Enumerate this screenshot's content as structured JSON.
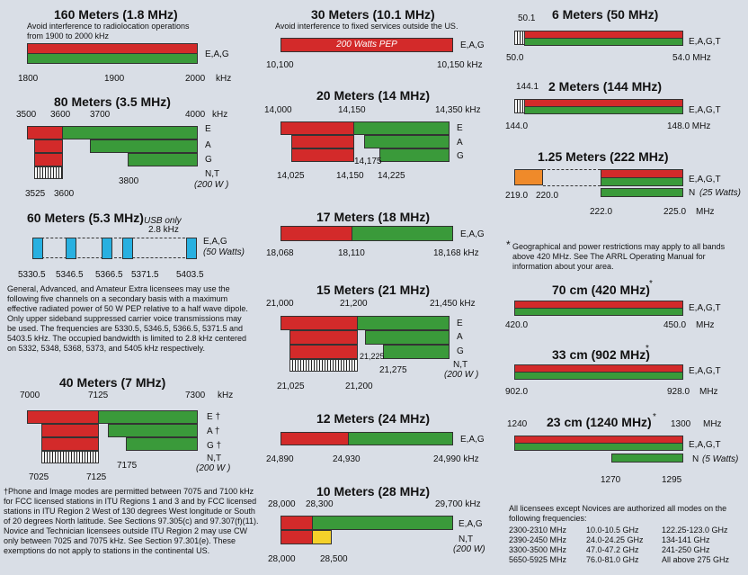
{
  "col1": {
    "b160": {
      "title": "160 Meters (1.8 MHz)",
      "sub": "Avoid interference to radiolocation operations from 1900 to 2000 kHz",
      "mode": "E,A,G",
      "t1": "1800",
      "t2": "1900",
      "t3": "2000",
      "unit": "kHz"
    },
    "b80": {
      "title": "80 Meters (3.5 MHz)",
      "top1": "3500",
      "top2": "3600",
      "top3": "3700",
      "top4": "4000",
      "unit": "kHz",
      "e": "E",
      "a": "A",
      "g": "G",
      "nt": "N,T",
      "pw": "(200 W )",
      "b1": "3800",
      "c1": "3525",
      "c2": "3600"
    },
    "b60": {
      "title": "60 Meters (5.3 MHz)",
      "usb": "USB only",
      "bw": "2.8 kHz",
      "mode": "E,A,G",
      "pw": "(50 Watts)",
      "f1": "5330.5",
      "f2": "5346.5",
      "f3": "5366.5",
      "f4": "5371.5",
      "f5": "5403.5",
      "text": "General, Advanced, and Amateur Extra licensees may use the following five channels on a secondary basis with a maximum effective radiated power of 50 W PEP relative to a half wave dipole. Only upper sideband suppressed carrier voice transmissions may be used. The frequencies are 5330.5, 5346.5, 5366.5, 5371.5 and 5403.5 kHz. The occupied bandwidth is limited to 2.8 kHz centered on 5332, 5348, 5368, 5373, and 5405 kHz respectively."
    },
    "b40": {
      "title": "40 Meters (7 MHz)",
      "top1": "7000",
      "top2": "7125",
      "top3": "7300",
      "unit": "kHz",
      "e": "E †",
      "a": "A †",
      "g": "G †",
      "nt": "N,T",
      "pw": "(200 W )",
      "b1": "7175",
      "c1": "7025",
      "c2": "7125"
    },
    "foot": "†Phone and Image modes are permitted between 7075 and 7100 kHz for FCC licensed stations in ITU Regions 1 and 3 and by FCC licensed stations in ITU Region 2 West of 130 degrees West longitude or South of 20 degrees North latitude. See Sections 97.305(c) and 97.307(f)(11). Novice and Technician licensees outside ITU Region 2 may use CW only between 7025 and 7075 kHz. See Section 97.301(e). These exemptions do not apply to stations in the continental US."
  },
  "col2": {
    "b30": {
      "title": "30 Meters (10.1 MHz)",
      "sub": "Avoid interference to fixed services outside the US.",
      "pep": "200 Watts PEP",
      "mode": "E,A,G",
      "t1": "10,100",
      "t2": "10,150 kHz"
    },
    "b20": {
      "title": "20 Meters (14 MHz)",
      "top1": "14,000",
      "top2": "14,150",
      "top3": "14,350 kHz",
      "e": "E",
      "a": "A",
      "g": "G",
      "m1": "14,175",
      "b1": "14,025",
      "b2": "14,150",
      "b3": "14,225"
    },
    "b17": {
      "title": "17 Meters (18 MHz)",
      "mode": "E,A,G",
      "t1": "18,068",
      "t2": "18,110",
      "t3": "18,168 kHz"
    },
    "b15": {
      "title": "15 Meters (21 MHz)",
      "top1": "21,000",
      "top2": "21,200",
      "top3": "21,450 kHz",
      "e": "E",
      "a": "A",
      "g": "G",
      "nt": "N,T",
      "pw": "(200 W )",
      "m1": "21,225",
      "m2": "21,275",
      "b1": "21,025",
      "b2": "21,200"
    },
    "b12": {
      "title": "12 Meters (24 MHz)",
      "mode": "E,A,G",
      "t1": "24,890",
      "t2": "24,930",
      "t3": "24,990 kHz"
    },
    "b10": {
      "title": "10 Meters (28 MHz)",
      "top1": "28,000",
      "top2": "28,300",
      "top3": "29,700 kHz",
      "mode": "E,A,G",
      "nt": "N,T",
      "pw": "(200 W)",
      "b1": "28,000",
      "b2": "28,500"
    }
  },
  "col3": {
    "b6": {
      "title": "6 Meters (50 MHz)",
      "top": "50.1",
      "mode": "E,A,G,T",
      "t1": "50.0",
      "t2": "54.0 MHz"
    },
    "b2": {
      "title": "2 Meters (144 MHz)",
      "top": "144.1",
      "mode": "E,A,G,T",
      "t1": "144.0",
      "t2": "148.0 MHz"
    },
    "b125": {
      "title": "1.25 Meters (222 MHz)",
      "mode": "E,A,G,T",
      "n": "N",
      "pw": "(25 Watts)",
      "t1": "219.0",
      "t2": "220.0",
      "t3": "222.0",
      "t4": "225.0",
      "unit": "MHz"
    },
    "geo": "Geographical and power restrictions may apply to all bands above 420 MHz. See The ARRL Operating Manual for information about your area.",
    "geo_star": "*",
    "b70": {
      "title": "70 cm (420 MHz)",
      "star": "*",
      "mode": "E,A,G,T",
      "t1": "420.0",
      "t2": "450.0",
      "unit": "MHz"
    },
    "b33": {
      "title": "33 cm (902 MHz)",
      "star": "*",
      "mode": "E,A,G,T",
      "t1": "902.0",
      "t2": "928.0",
      "unit": "MHz"
    },
    "b23": {
      "title": "23 cm (1240 MHz)",
      "star": "*",
      "top1": "1240",
      "top2": "1300",
      "unit": "MHz",
      "mode": "E,A,G,T",
      "n": "N",
      "pw": "(5 Watts)",
      "b1": "1270",
      "b2": "1295"
    },
    "all": "All licensees except Novices are authorized all modes on the following frequencies:",
    "freqs": [
      [
        "2300-2310 MHz",
        "10.0-10.5 GHz",
        "122.25-123.0 GHz"
      ],
      [
        "2390-2450 MHz",
        "24.0-24.25 GHz",
        "134-141 GHz"
      ],
      [
        "3300-3500 MHz",
        "47.0-47.2 GHz",
        "241-250 GHz"
      ],
      [
        "5650-5925 MHz",
        "76.0-81.0 GHz",
        "All above 275 GHz"
      ]
    ]
  },
  "colors": {
    "red": "#d32a2a",
    "green": "#3a9a3a",
    "yellow": "#f4d12a",
    "orange": "#ef8a2a",
    "cyan": "#28b0e0",
    "bg": "#d9dee6"
  }
}
